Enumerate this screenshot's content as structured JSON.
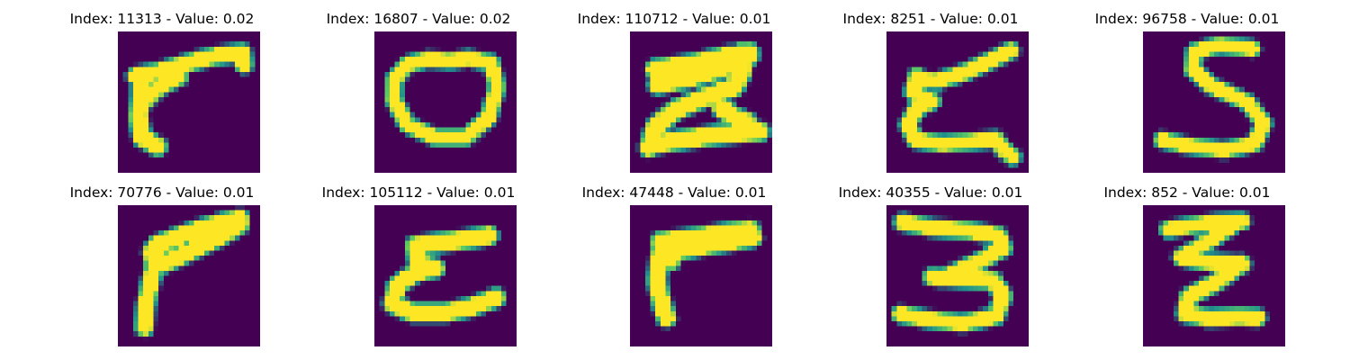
{
  "colors": {
    "background": "#440154",
    "stroke_core": "#fde725",
    "stroke_edge": "#21918c",
    "stroke_mid": "#5ec962"
  },
  "panels": [
    {
      "title": "Index: 11313 - Value: 0.02",
      "glyph": "seven-hook-glyph"
    },
    {
      "title": "Index: 16807 - Value: 0.02",
      "glyph": "oval-zero-glyph"
    },
    {
      "title": "Index: 110712 - Value: 0.01",
      "glyph": "thick-two-glyph"
    },
    {
      "title": "Index: 8251 - Value: 0.01",
      "glyph": "curly-e-glyph"
    },
    {
      "title": "Index: 96758 - Value: 0.01",
      "glyph": "five-s-glyph"
    },
    {
      "title": "Index: 70776 - Value: 0.01",
      "glyph": "seven-loop-glyph"
    },
    {
      "title": "Index: 105112 - Value: 0.01",
      "glyph": "c-shape-glyph"
    },
    {
      "title": "Index: 47448 - Value: 0.01",
      "glyph": "r-shape-glyph"
    },
    {
      "title": "Index: 40355 - Value: 0.01",
      "glyph": "three-glyph"
    },
    {
      "title": "Index: 852 - Value: 0.01",
      "glyph": "zigzag-z-glyph"
    }
  ]
}
